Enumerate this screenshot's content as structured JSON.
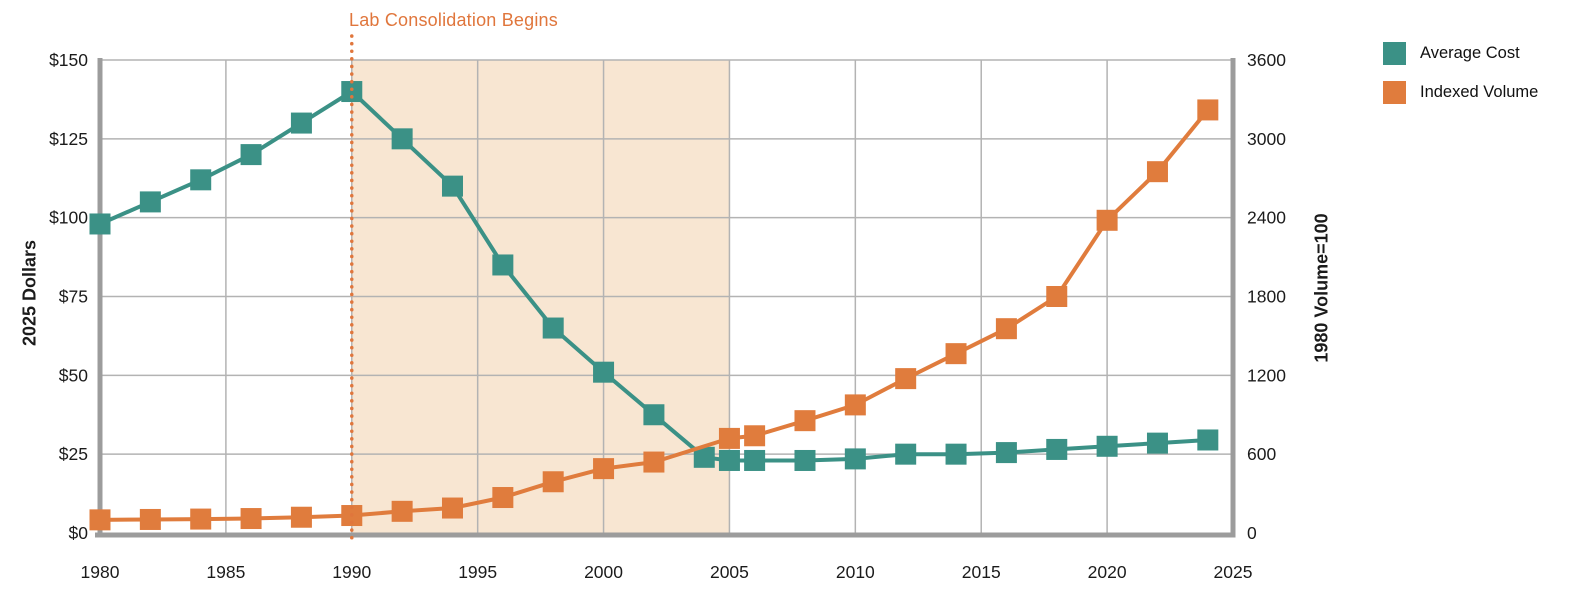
{
  "chart_data": {
    "type": "line",
    "annotation": {
      "text": "Lab Consolidation Begins",
      "x_year": 1990,
      "color": "#E0763C"
    },
    "x_axis": {
      "min": 1980,
      "max": 2025,
      "ticks": [
        1980,
        1985,
        1990,
        1995,
        2000,
        2005,
        2010,
        2015,
        2020,
        2025
      ]
    },
    "y_left": {
      "label": "2025 Dollars",
      "min": 0,
      "max": 150,
      "ticks": [
        0,
        25,
        50,
        75,
        100,
        125,
        150
      ],
      "tick_labels": [
        "$0",
        "$25",
        "$50",
        "$75",
        "$100",
        "$125",
        "$150"
      ]
    },
    "y_right": {
      "label": "1980 Volume=100",
      "min": 0,
      "max": 3600,
      "ticks": [
        0,
        600,
        1200,
        1800,
        2400,
        3000,
        3600
      ],
      "tick_labels": [
        "0",
        "600",
        "1200",
        "1800",
        "2400",
        "3000",
        "3600"
      ]
    },
    "shaded_region": {
      "x_start": 1990,
      "x_end": 2005,
      "color": "#F8E6D2"
    },
    "vline": {
      "x_year": 1990,
      "color": "#E0763C",
      "style": "dotted"
    },
    "grid": true,
    "legend_position": "top-right-outside",
    "colors": {
      "gridline": "#B3B3B3",
      "frame": "#9C9C9C",
      "text": "#1b1b1b"
    },
    "series": [
      {
        "name": "Average Cost",
        "axis": "left",
        "color": "#3B9186",
        "marker": "square",
        "points": [
          [
            1980,
            98
          ],
          [
            1982,
            105
          ],
          [
            1984,
            112
          ],
          [
            1986,
            120
          ],
          [
            1988,
            130
          ],
          [
            1990,
            140
          ],
          [
            1992,
            125
          ],
          [
            1994,
            110
          ],
          [
            1996,
            85
          ],
          [
            1998,
            65
          ],
          [
            2000,
            51
          ],
          [
            2002,
            37.5
          ],
          [
            2004,
            24
          ],
          [
            2005,
            23
          ],
          [
            2006,
            23
          ],
          [
            2008,
            23
          ],
          [
            2010,
            23.5
          ],
          [
            2012,
            25
          ],
          [
            2014,
            25
          ],
          [
            2016,
            25.5
          ],
          [
            2018,
            26.5
          ],
          [
            2020,
            27.5
          ],
          [
            2022,
            28.5
          ],
          [
            2024,
            29.5
          ]
        ]
      },
      {
        "name": "Indexed Volume",
        "axis": "right",
        "color": "#E07C3D",
        "marker": "square",
        "points": [
          [
            1980,
            100
          ],
          [
            1982,
            103
          ],
          [
            1984,
            106
          ],
          [
            1986,
            110
          ],
          [
            1988,
            120
          ],
          [
            1990,
            133
          ],
          [
            1992,
            165
          ],
          [
            1994,
            190
          ],
          [
            1996,
            270
          ],
          [
            1998,
            390
          ],
          [
            2000,
            490
          ],
          [
            2002,
            540
          ],
          [
            2005,
            720
          ],
          [
            2006,
            740
          ],
          [
            2008,
            855
          ],
          [
            2010,
            975
          ],
          [
            2012,
            1175
          ],
          [
            2014,
            1365
          ],
          [
            2016,
            1555
          ],
          [
            2018,
            1800
          ],
          [
            2020,
            2380
          ],
          [
            2022,
            2750
          ],
          [
            2024,
            3220
          ]
        ]
      }
    ]
  }
}
